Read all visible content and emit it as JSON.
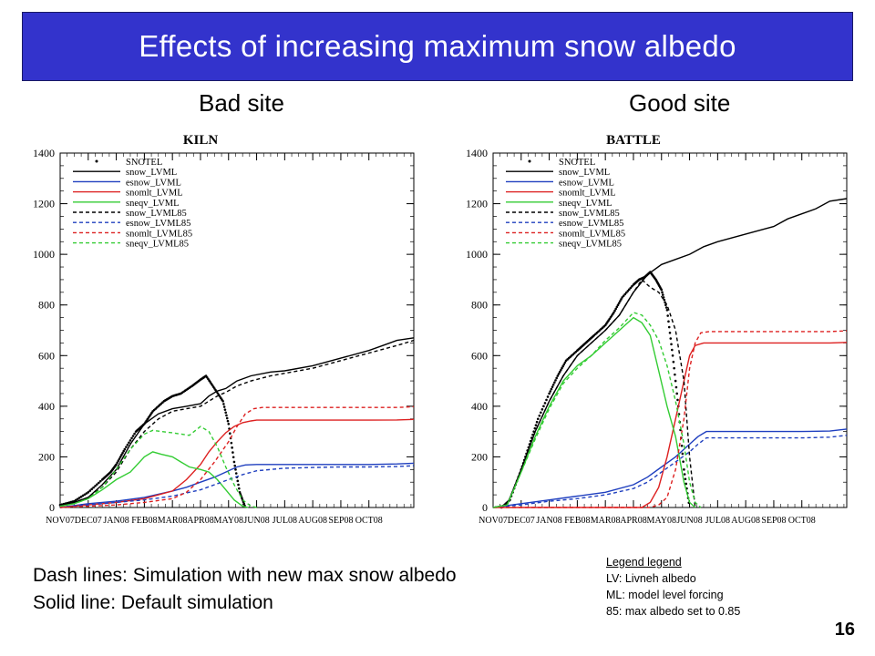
{
  "header": {
    "title": "Effects of increasing maximum snow albedo"
  },
  "panels": [
    {
      "site_label": "Bad site"
    },
    {
      "site_label": "Good site"
    }
  ],
  "captions": {
    "line1": "Dash lines: Simulation with new max snow albedo",
    "line2": "Solid line: Default simulation"
  },
  "legend_legend": {
    "header": "Legend legend",
    "items": [
      "LV: Livneh albedo",
      "ML: model level forcing",
      "85: max albedo set to 0.85"
    ]
  },
  "page_number": "16",
  "colors": {
    "title_bg": "#3333cc",
    "black": "#000000",
    "blue": "#1f3fbf",
    "red": "#dd2020",
    "green": "#33cc33"
  },
  "chart_data": [
    {
      "type": "line",
      "title": "KILN",
      "ylim": [
        0,
        1400
      ],
      "yticks": [
        0,
        200,
        400,
        600,
        800,
        1000,
        1200,
        1400
      ],
      "xticks": [
        "NOV07",
        "DEC07",
        "JAN08",
        "FEB08",
        "MAR08",
        "APR08",
        "MAY08",
        "JUN08",
        "JUL08",
        "AUG08",
        "SEP08",
        "OCT08"
      ],
      "xlim": [
        0,
        12.6
      ],
      "legend": [
        "SNOTEL",
        "snow_LVML",
        "esnow_LVML",
        "snomlt_LVML",
        "sneqv_LVML",
        "snow_LVML85",
        "esnow_LVML85",
        "snomlt_LVML85",
        "sneqv_LVML85"
      ],
      "legend_position": "top-left",
      "series": [
        {
          "name": "SNOTEL",
          "style": "dots",
          "color": "#000000",
          "x": [
            0,
            0.5,
            1,
            1.5,
            1.8,
            2,
            2.3,
            2.7,
            3,
            3.3,
            3.7,
            4,
            4.3,
            4.7,
            5,
            5.2,
            5.5,
            5.8,
            6,
            6.2,
            6.4,
            6.6
          ],
          "y": [
            10,
            25,
            60,
            110,
            140,
            170,
            230,
            300,
            330,
            380,
            420,
            440,
            450,
            480,
            505,
            520,
            470,
            420,
            330,
            180,
            60,
            0
          ]
        },
        {
          "name": "snow_LVML",
          "style": "solid",
          "color": "#000000",
          "x": [
            0,
            0.5,
            1,
            1.5,
            2,
            2.5,
            3,
            3.5,
            4,
            4.5,
            5,
            5.3,
            5.6,
            5.9,
            6.3,
            6.8,
            7.5,
            8,
            9,
            10,
            11,
            11.5,
            12,
            12.6
          ],
          "y": [
            5,
            20,
            40,
            90,
            150,
            250,
            330,
            370,
            390,
            400,
            410,
            440,
            460,
            470,
            500,
            520,
            535,
            540,
            560,
            590,
            620,
            640,
            660,
            670
          ]
        },
        {
          "name": "esnow_LVML",
          "style": "solid",
          "color": "#1f3fbf",
          "x": [
            0,
            1,
            2,
            3,
            4,
            4.5,
            5,
            5.5,
            6,
            6.3,
            6.6,
            7,
            8,
            9,
            10,
            11,
            12,
            12.6
          ],
          "y": [
            0,
            15,
            25,
            40,
            65,
            80,
            100,
            120,
            145,
            160,
            168,
            170,
            170,
            170,
            170,
            170,
            172,
            175
          ]
        },
        {
          "name": "snomlt_LVML",
          "style": "solid",
          "color": "#dd2020",
          "x": [
            0,
            1,
            2,
            3,
            4,
            4.5,
            5,
            5.3,
            5.6,
            5.9,
            6.2,
            6.5,
            6.8,
            7,
            7.5,
            8,
            9,
            10,
            11,
            12,
            12.6
          ],
          "y": [
            0,
            10,
            20,
            35,
            65,
            110,
            170,
            220,
            260,
            295,
            320,
            335,
            342,
            345,
            345,
            345,
            345,
            345,
            345,
            346,
            348
          ]
        },
        {
          "name": "sneqv_LVML",
          "style": "solid",
          "color": "#33cc33",
          "x": [
            0,
            0.5,
            1,
            1.5,
            2,
            2.5,
            3,
            3.3,
            3.6,
            4,
            4.3,
            4.6,
            5,
            5.3,
            5.6,
            5.9,
            6.2,
            6.5,
            6.7
          ],
          "y": [
            5,
            15,
            35,
            70,
            110,
            140,
            200,
            220,
            210,
            200,
            180,
            160,
            150,
            140,
            110,
            70,
            30,
            5,
            0
          ]
        },
        {
          "name": "snow_LVML85",
          "style": "dashed",
          "color": "#000000",
          "x": [
            0,
            0.5,
            1,
            1.5,
            2,
            2.5,
            3,
            3.5,
            4,
            4.5,
            5,
            5.3,
            5.6,
            5.9,
            6.3,
            6.8,
            7.5,
            8,
            9,
            10,
            11,
            12,
            12.6
          ],
          "y": [
            5,
            20,
            40,
            80,
            140,
            230,
            300,
            350,
            380,
            390,
            400,
            420,
            440,
            455,
            480,
            500,
            520,
            530,
            550,
            580,
            610,
            640,
            660
          ]
        },
        {
          "name": "esnow_LVML85",
          "style": "dashed",
          "color": "#1f3fbf",
          "x": [
            0,
            1,
            2,
            3,
            4,
            5,
            5.5,
            6,
            6.5,
            7,
            8,
            9,
            10,
            11,
            12,
            12.6
          ],
          "y": [
            0,
            10,
            20,
            30,
            45,
            70,
            90,
            110,
            130,
            145,
            155,
            158,
            160,
            160,
            162,
            165
          ]
        },
        {
          "name": "snomlt_LVML85",
          "style": "dashed",
          "color": "#dd2020",
          "x": [
            0,
            1,
            2,
            3,
            4,
            4.5,
            5,
            5.5,
            6,
            6.3,
            6.6,
            6.9,
            7.2,
            7.5,
            8,
            9,
            10,
            11,
            12,
            12.6
          ],
          "y": [
            0,
            5,
            10,
            20,
            35,
            60,
            110,
            180,
            260,
            320,
            370,
            390,
            395,
            395,
            395,
            395,
            395,
            395,
            395,
            398
          ]
        },
        {
          "name": "sneqv_LVML85",
          "style": "dashed",
          "color": "#33cc33",
          "x": [
            0,
            0.5,
            1,
            1.5,
            2,
            2.5,
            3,
            3.3,
            3.6,
            4,
            4.3,
            4.6,
            5,
            5.3,
            5.6,
            5.9,
            6.2,
            6.5,
            6.8,
            7
          ],
          "y": [
            5,
            15,
            35,
            80,
            150,
            230,
            290,
            305,
            300,
            295,
            290,
            285,
            320,
            300,
            240,
            160,
            90,
            30,
            5,
            0
          ]
        }
      ]
    },
    {
      "type": "line",
      "title": "BATTLE",
      "ylim": [
        0,
        1400
      ],
      "yticks": [
        0,
        200,
        400,
        600,
        800,
        1000,
        1200,
        1400
      ],
      "xticks": [
        "NOV07",
        "DEC07",
        "JAN08",
        "FEB08",
        "MAR08",
        "APR08",
        "MAY08",
        "JUN08",
        "JUL08",
        "AUG08",
        "SEP08",
        "OCT08"
      ],
      "xlim": [
        0,
        12.6
      ],
      "legend": [
        "SNOTEL",
        "snow_LVML",
        "esnow_LVML",
        "snomlt_LVML",
        "sneqv_LVML",
        "snow_LVML85",
        "esnow_LVML85",
        "snomlt_LVML85",
        "sneqv_LVML85"
      ],
      "legend_position": "top-left",
      "series": [
        {
          "name": "SNOTEL",
          "style": "dots",
          "color": "#000000",
          "x": [
            0.3,
            0.6,
            1,
            1.3,
            1.6,
            2,
            2.3,
            2.6,
            3,
            3.3,
            3.6,
            4,
            4.3,
            4.6,
            5,
            5.2,
            5.4,
            5.6,
            5.8,
            6,
            6.2,
            6.4,
            6.6,
            6.8,
            7
          ],
          "y": [
            0,
            30,
            150,
            250,
            350,
            450,
            520,
            580,
            620,
            650,
            680,
            720,
            770,
            830,
            880,
            900,
            910,
            930,
            900,
            860,
            780,
            600,
            400,
            150,
            0
          ]
        },
        {
          "name": "snow_LVML",
          "style": "solid",
          "color": "#000000",
          "x": [
            0,
            0.5,
            1,
            1.5,
            2,
            2.5,
            3,
            3.5,
            4,
            4.5,
            5,
            5.5,
            6,
            6.5,
            7,
            7.5,
            8,
            9,
            10,
            10.5,
            11,
            11.5,
            12,
            12.6
          ],
          "y": [
            0,
            10,
            150,
            300,
            420,
            520,
            600,
            650,
            700,
            760,
            850,
            920,
            960,
            980,
            1000,
            1030,
            1050,
            1080,
            1110,
            1140,
            1160,
            1180,
            1210,
            1220
          ]
        },
        {
          "name": "esnow_LVML",
          "style": "solid",
          "color": "#1f3fbf",
          "x": [
            0,
            1,
            2,
            3,
            4,
            5,
            5.5,
            6,
            6.5,
            7,
            7.3,
            7.6,
            8,
            9,
            10,
            11,
            12,
            12.6
          ],
          "y": [
            0,
            15,
            30,
            45,
            60,
            90,
            120,
            160,
            200,
            250,
            280,
            300,
            300,
            300,
            300,
            300,
            302,
            310
          ]
        },
        {
          "name": "snomlt_LVML",
          "style": "solid",
          "color": "#dd2020",
          "x": [
            0,
            5.3,
            5.6,
            5.9,
            6.2,
            6.5,
            6.8,
            7,
            7.2,
            7.5,
            8,
            9,
            10,
            11,
            12,
            12.6
          ],
          "y": [
            0,
            0,
            20,
            80,
            200,
            350,
            500,
            600,
            640,
            650,
            650,
            650,
            650,
            650,
            650,
            652
          ]
        },
        {
          "name": "sneqv_LVML",
          "style": "solid",
          "color": "#33cc33",
          "x": [
            0,
            0.5,
            1,
            1.5,
            2,
            2.5,
            3,
            3.5,
            4,
            4.5,
            5,
            5.3,
            5.6,
            5.9,
            6.2,
            6.5,
            6.8,
            7,
            7.2
          ],
          "y": [
            0,
            10,
            140,
            280,
            400,
            500,
            560,
            600,
            650,
            700,
            750,
            730,
            680,
            540,
            400,
            280,
            100,
            20,
            0
          ]
        },
        {
          "name": "snow_LVML85",
          "style": "dashed",
          "color": "#000000",
          "x": [
            0,
            0.5,
            1,
            1.5,
            2,
            2.5,
            3,
            3.5,
            4,
            4.5,
            5,
            5.3,
            5.6,
            5.9,
            6.2,
            6.5,
            6.8,
            7,
            7.2
          ],
          "y": [
            0,
            10,
            150,
            300,
            420,
            520,
            600,
            650,
            700,
            760,
            850,
            900,
            870,
            850,
            800,
            700,
            500,
            200,
            0
          ]
        },
        {
          "name": "esnow_LVML85",
          "style": "dashed",
          "color": "#1f3fbf",
          "x": [
            0,
            1,
            2,
            3,
            4,
            5,
            5.5,
            6,
            6.5,
            7,
            7.3,
            7.6,
            8,
            9,
            10,
            11,
            12,
            12.6
          ],
          "y": [
            0,
            10,
            25,
            35,
            50,
            75,
            100,
            140,
            180,
            220,
            250,
            275,
            275,
            275,
            275,
            275,
            278,
            285
          ]
        },
        {
          "name": "snomlt_LVML85",
          "style": "dashed",
          "color": "#dd2020",
          "x": [
            0,
            5.6,
            5.9,
            6.2,
            6.5,
            6.8,
            7,
            7.2,
            7.4,
            7.7,
            8,
            9,
            10,
            11,
            12,
            12.6
          ],
          "y": [
            0,
            0,
            10,
            40,
            150,
            350,
            550,
            650,
            690,
            695,
            695,
            695,
            695,
            695,
            695,
            698
          ]
        },
        {
          "name": "sneqv_LVML85",
          "style": "dashed",
          "color": "#33cc33",
          "x": [
            0,
            0.5,
            1,
            1.5,
            2,
            2.5,
            3,
            3.5,
            4,
            4.5,
            5,
            5.3,
            5.6,
            5.9,
            6.2,
            6.5,
            6.8,
            7,
            7.2,
            7.4
          ],
          "y": [
            0,
            10,
            140,
            270,
            390,
            490,
            550,
            600,
            660,
            710,
            770,
            760,
            720,
            660,
            560,
            420,
            250,
            100,
            20,
            0
          ]
        }
      ]
    }
  ]
}
